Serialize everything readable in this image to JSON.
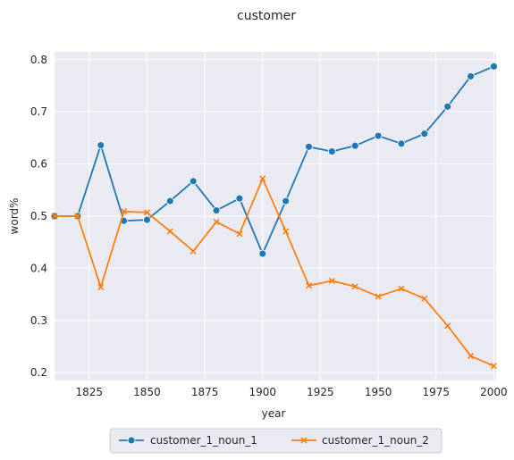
{
  "chart_data": {
    "type": "line",
    "title": "customer",
    "xlabel": "year",
    "ylabel": "word%",
    "xlim": [
      1810,
      2001
    ],
    "ylim": [
      0.185,
      0.815
    ],
    "xticks": [
      1825,
      1850,
      1875,
      1900,
      1925,
      1950,
      1975,
      2000
    ],
    "yticks": [
      0.2,
      0.3,
      0.4,
      0.5,
      0.6,
      0.7,
      0.8
    ],
    "xtick_labels": [
      "1825",
      "1850",
      "1875",
      "1900",
      "1925",
      "1950",
      "1975",
      "2000"
    ],
    "ytick_labels": [
      "0.2",
      "0.3",
      "0.4",
      "0.5",
      "0.6",
      "0.7",
      "0.8"
    ],
    "grid": true,
    "legend_position": "bottom-center",
    "x": [
      1810,
      1820,
      1830,
      1840,
      1850,
      1860,
      1870,
      1880,
      1890,
      1900,
      1910,
      1920,
      1930,
      1940,
      1950,
      1960,
      1970,
      1980,
      1990,
      2000
    ],
    "series": [
      {
        "name": "customer_1_noun_1",
        "color": "#1f77b4",
        "marker": "circle",
        "values": [
          0.5,
          0.5,
          0.636,
          0.491,
          0.493,
          0.529,
          0.567,
          0.511,
          0.534,
          0.428,
          0.529,
          0.633,
          0.624,
          0.635,
          0.654,
          0.639,
          0.658,
          0.71,
          0.768,
          0.787
        ]
      },
      {
        "name": "customer_1_noun_2",
        "color": "#ff7f0e",
        "marker": "x",
        "values": [
          0.5,
          0.5,
          0.364,
          0.509,
          0.507,
          0.471,
          0.433,
          0.489,
          0.466,
          0.572,
          0.471,
          0.367,
          0.376,
          0.365,
          0.346,
          0.361,
          0.342,
          0.29,
          0.232,
          0.213
        ]
      }
    ]
  }
}
